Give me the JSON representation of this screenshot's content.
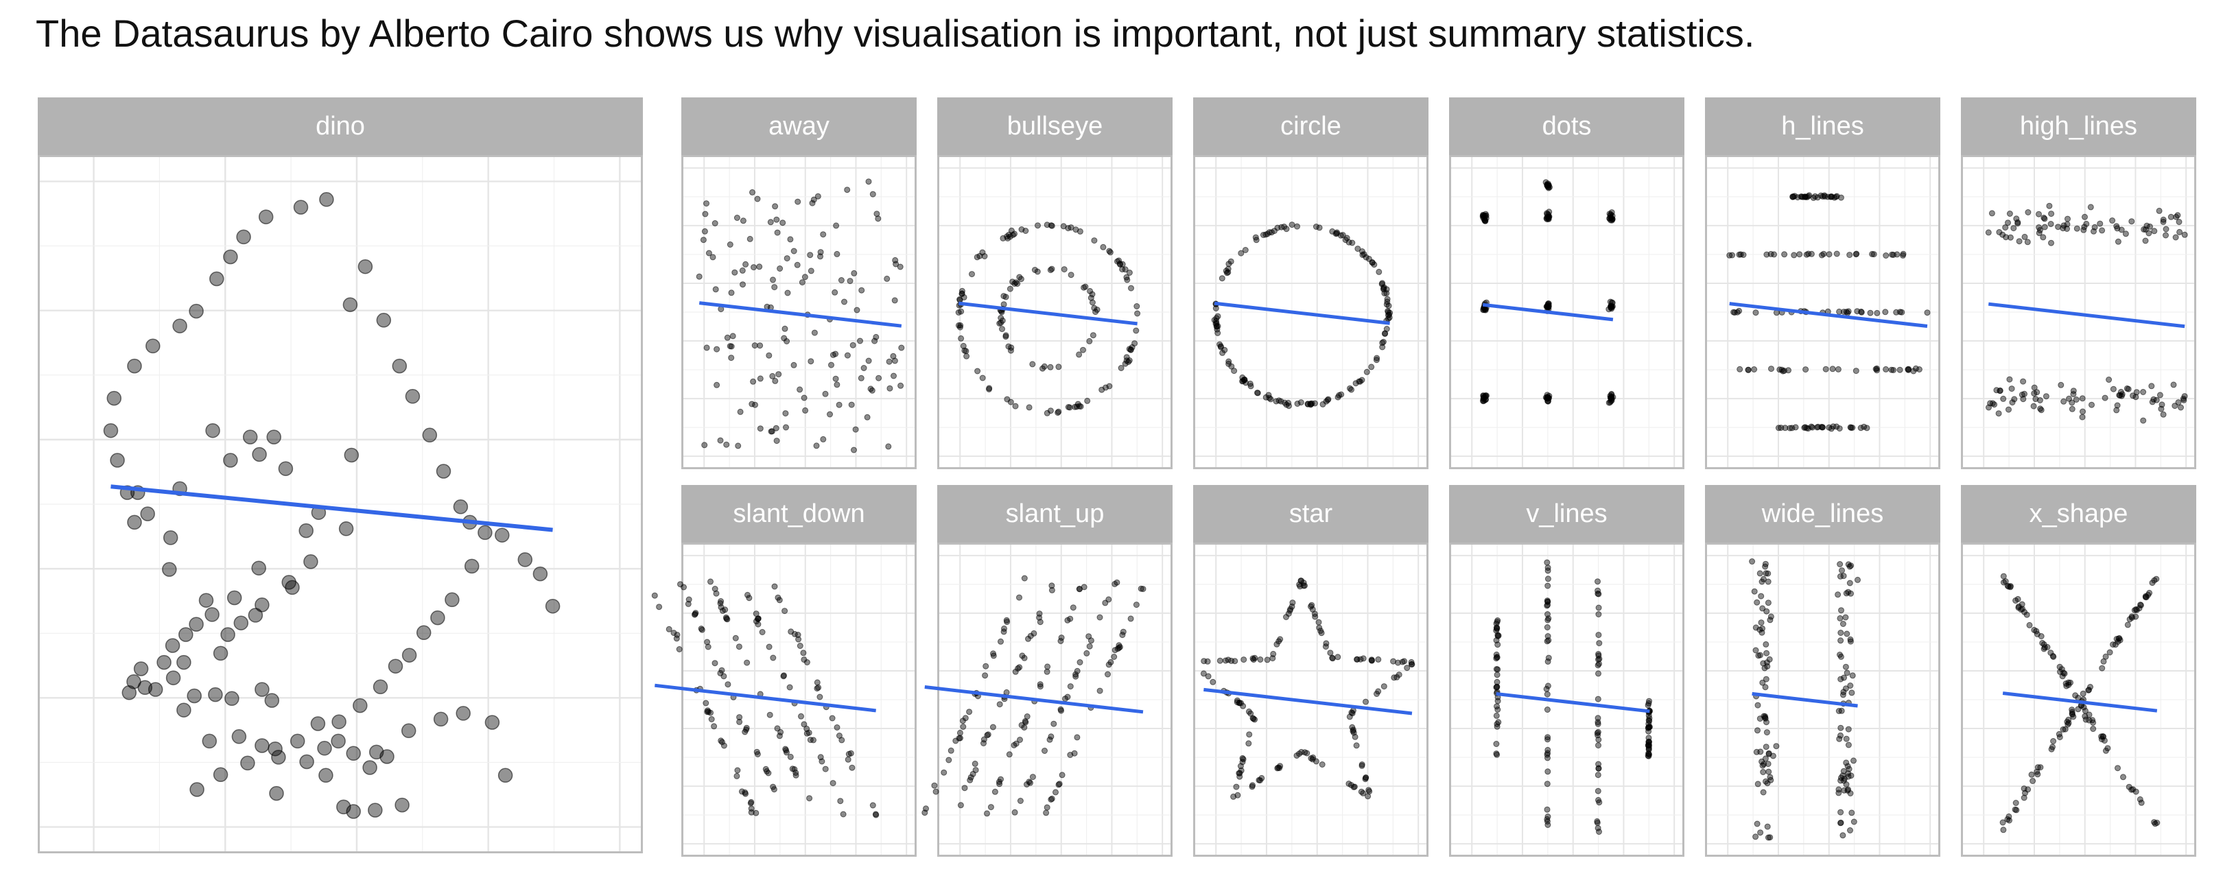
{
  "title": "The Datasaurus by Alberto Cairo shows us why visualisation is important, not just summary statistics.",
  "colors": {
    "strip": "#b3b3b3",
    "strip_text": "#ffffff",
    "grid": "#e5e5e5",
    "point": "#000000",
    "regression_line": "#3366e6"
  },
  "chart_data": {
    "type": "scatter",
    "facets": true,
    "grid": true,
    "xlim": [
      15,
      100
    ],
    "ylim": [
      0,
      100
    ],
    "regression_line": {
      "description": "least-squares fit shown in each panel",
      "y_at_x20": 53,
      "y_at_x100": 45
    },
    "panels": [
      {
        "name": "dino",
        "points": [
          [
            55.4,
            97.2
          ],
          [
            51.5,
            96
          ],
          [
            46.2,
            94.5
          ],
          [
            42.8,
            91.4
          ],
          [
            40.8,
            88.3
          ],
          [
            38.7,
            84.9
          ],
          [
            35.6,
            79.9
          ],
          [
            33.1,
            77.6
          ],
          [
            29,
            74.5
          ],
          [
            26.2,
            71.4
          ],
          [
            23.1,
            66.4
          ],
          [
            22.6,
            61.4
          ],
          [
            23.6,
            56.8
          ],
          [
            25.1,
            51.8
          ],
          [
            26.2,
            47.2
          ],
          [
            26.7,
            51.8
          ],
          [
            28.2,
            48.5
          ],
          [
            33.1,
            52.4
          ],
          [
            38.1,
            61.4
          ],
          [
            40.8,
            56.8
          ],
          [
            43.8,
            60.4
          ],
          [
            45.2,
            57.7
          ],
          [
            47.4,
            60.4
          ],
          [
            49.2,
            55.5
          ],
          [
            59,
            80.9
          ],
          [
            61.3,
            86.8
          ],
          [
            64.1,
            78.5
          ],
          [
            66.5,
            71.4
          ],
          [
            68.5,
            66.7
          ],
          [
            71.1,
            60.7
          ],
          [
            73.2,
            55.1
          ],
          [
            75.8,
            49.6
          ],
          [
            77.2,
            47.2
          ],
          [
            79.5,
            45.6
          ],
          [
            82.1,
            45.2
          ],
          [
            85.6,
            41.4
          ],
          [
            87.9,
            39.2
          ],
          [
            89.8,
            34.2
          ],
          [
            31.7,
            44.8
          ],
          [
            31.5,
            39.9
          ],
          [
            37.1,
            35.1
          ],
          [
            35.6,
            31.4
          ],
          [
            32,
            28.1
          ],
          [
            30.7,
            25.5
          ],
          [
            39.3,
            26.9
          ],
          [
            40.4,
            29.8
          ],
          [
            42.4,
            31.6
          ],
          [
            44.6,
            32.8
          ],
          [
            45.6,
            34.4
          ],
          [
            50.2,
            37.1
          ],
          [
            52.3,
            45.9
          ],
          [
            54.2,
            48.7
          ],
          [
            59.2,
            57.6
          ],
          [
            58.4,
            46.2
          ],
          [
            53,
            41.1
          ],
          [
            49.7,
            37.9
          ],
          [
            45.1,
            40.1
          ],
          [
            41.4,
            35.5
          ],
          [
            38,
            32.9
          ],
          [
            34,
            29.8
          ],
          [
            33.7,
            25.5
          ],
          [
            32.1,
            23.1
          ],
          [
            29.4,
            21.3
          ],
          [
            27.8,
            21.6
          ],
          [
            25.4,
            20.8
          ],
          [
            26.1,
            22.5
          ],
          [
            27.2,
            24.5
          ],
          [
            47.1,
            19.6
          ],
          [
            45.6,
            21.3
          ],
          [
            41,
            19.9
          ],
          [
            38.5,
            20.5
          ],
          [
            35.3,
            20.3
          ],
          [
            33.7,
            18.1
          ],
          [
            37.6,
            13.3
          ],
          [
            42.1,
            14
          ],
          [
            45.6,
            12.6
          ],
          [
            47.6,
            12.1
          ],
          [
            51,
            13.3
          ],
          [
            54.1,
            16
          ],
          [
            57.3,
            16.3
          ],
          [
            60.5,
            18.8
          ],
          [
            63.6,
            21.7
          ],
          [
            65.9,
            24.9
          ],
          [
            70.2,
            30.1
          ],
          [
            72.3,
            32.4
          ],
          [
            74.5,
            35.2
          ],
          [
            77.5,
            40.4
          ],
          [
            68,
            26.6
          ],
          [
            63,
            11.6
          ],
          [
            59.5,
            11.4
          ],
          [
            57.2,
            13.3
          ],
          [
            55.1,
            12.2
          ],
          [
            52.4,
            10.1
          ],
          [
            48.1,
            10.8
          ],
          [
            43.4,
            9.9
          ],
          [
            39.3,
            8.1
          ],
          [
            35.7,
            5.8
          ],
          [
            47.8,
            5.2
          ],
          [
            55.3,
            8
          ],
          [
            58,
            3.1
          ],
          [
            64.6,
            10.9
          ],
          [
            67.9,
            14.9
          ],
          [
            72.8,
            16.7
          ],
          [
            76.2,
            17.6
          ],
          [
            80.6,
            16.2
          ],
          [
            82.6,
            8
          ],
          [
            66.9,
            3.4
          ],
          [
            62.8,
            2.6
          ],
          [
            59.5,
            2.4
          ],
          [
            62,
            9.2
          ]
        ]
      },
      {
        "name": "away",
        "points": []
      },
      {
        "name": "bullseye",
        "points": []
      },
      {
        "name": "circle",
        "points": []
      },
      {
        "name": "dots",
        "points": []
      },
      {
        "name": "h_lines",
        "points": []
      },
      {
        "name": "high_lines",
        "points": []
      },
      {
        "name": "slant_down",
        "points": []
      },
      {
        "name": "slant_up",
        "points": []
      },
      {
        "name": "star",
        "points": []
      },
      {
        "name": "v_lines",
        "points": []
      },
      {
        "name": "wide_lines",
        "points": []
      },
      {
        "name": "x_shape",
        "points": []
      }
    ]
  }
}
